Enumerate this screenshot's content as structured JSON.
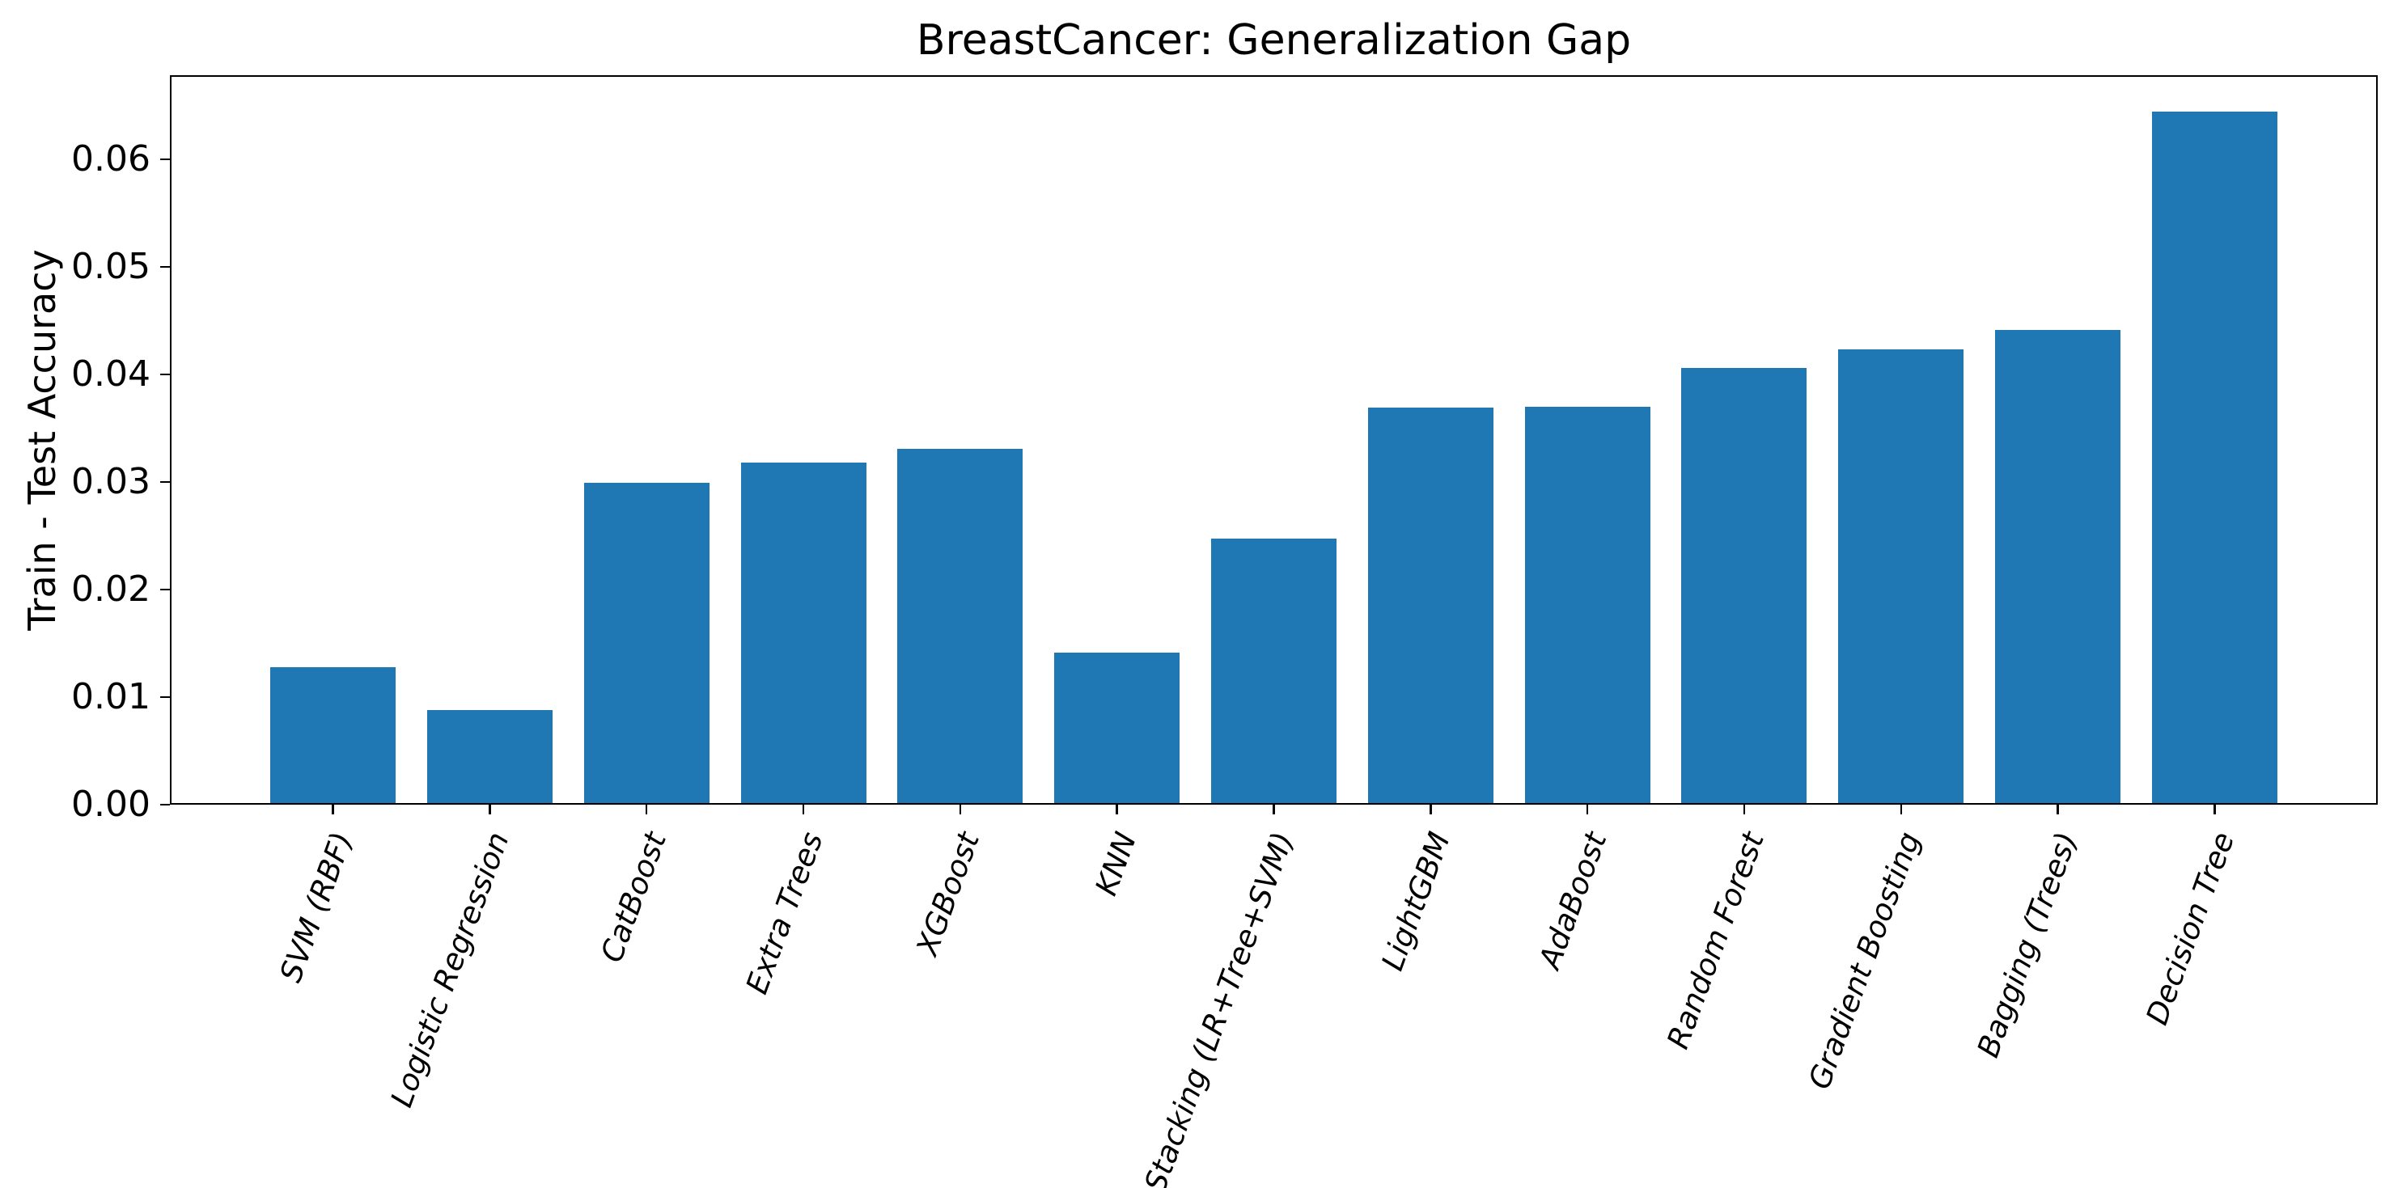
{
  "chart_data": {
    "type": "bar",
    "title": "BreastCancer: Generalization Gap",
    "xlabel": "",
    "ylabel": "Train - Test Accuracy",
    "categories": [
      "SVM (RBF)",
      "Logistic Regression",
      "CatBoost",
      "Extra Trees",
      "XGBoost",
      "KNN",
      "Stacking (LR+Tree+SVM)",
      "LightGBM",
      "AdaBoost",
      "Random Forest",
      "Gradient Boosting",
      "Bagging (Trees)",
      "Decision Tree"
    ],
    "values": [
      0.0128,
      0.0088,
      0.0299,
      0.0318,
      0.0331,
      0.0141,
      0.0247,
      0.0369,
      0.037,
      0.0406,
      0.0423,
      0.0441,
      0.0644
    ],
    "yticks": [
      "0.00",
      "0.01",
      "0.02",
      "0.03",
      "0.04",
      "0.05",
      "0.06"
    ],
    "ytick_values": [
      0.0,
      0.01,
      0.02,
      0.03,
      0.04,
      0.05,
      0.06
    ],
    "ylim": [
      0,
      0.0678
    ],
    "bar_color": "#1f77b4",
    "grid": false,
    "legend": false,
    "x_tick_rotation_deg": 70,
    "x_tick_style": "italic"
  }
}
